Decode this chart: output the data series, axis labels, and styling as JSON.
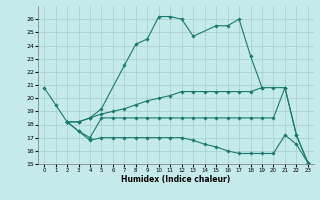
{
  "xlabel": "Humidex (Indice chaleur)",
  "bg_color": "#c5eaea",
  "line_color": "#1a7a6e",
  "grid_color": "#a8cccc",
  "xlim": [
    -0.5,
    23.5
  ],
  "ylim": [
    15,
    27
  ],
  "xticks": [
    0,
    1,
    2,
    3,
    4,
    5,
    6,
    7,
    8,
    9,
    10,
    11,
    12,
    13,
    14,
    15,
    16,
    17,
    18,
    19,
    20,
    21,
    22,
    23
  ],
  "yticks": [
    15,
    16,
    17,
    18,
    19,
    20,
    21,
    22,
    23,
    24,
    25,
    26
  ],
  "line1_x": [
    0,
    1,
    2,
    3,
    4,
    5,
    7,
    8,
    9,
    10,
    11,
    12,
    13,
    15,
    16,
    17,
    18,
    19
  ],
  "line1_y": [
    20.8,
    19.5,
    18.2,
    18.2,
    18.5,
    19.2,
    22.5,
    24.1,
    24.5,
    26.2,
    26.2,
    26.0,
    24.7,
    25.5,
    25.5,
    26.0,
    23.2,
    20.8
  ],
  "line2_x": [
    2,
    3,
    4,
    5,
    6,
    7,
    8,
    9,
    10,
    11,
    12,
    13,
    14,
    15,
    16,
    17,
    18,
    19,
    20,
    21,
    22,
    23
  ],
  "line2_y": [
    18.2,
    18.2,
    18.5,
    18.8,
    19.0,
    19.2,
    19.5,
    19.8,
    20.0,
    20.2,
    20.5,
    20.5,
    20.5,
    20.5,
    20.5,
    20.5,
    20.5,
    20.8,
    20.8,
    20.8,
    17.2,
    15.1
  ],
  "line3_x": [
    2,
    3,
    4,
    5,
    6,
    7,
    8,
    9,
    10,
    11,
    12,
    13,
    14,
    15,
    16,
    17,
    18,
    19,
    20,
    21,
    22,
    23
  ],
  "line3_y": [
    18.2,
    17.5,
    17.0,
    18.5,
    18.5,
    18.5,
    18.5,
    18.5,
    18.5,
    18.5,
    18.5,
    18.5,
    18.5,
    18.5,
    18.5,
    18.5,
    18.5,
    18.5,
    18.5,
    20.8,
    17.2,
    15.1
  ],
  "line4_x": [
    2,
    3,
    4,
    5,
    6,
    7,
    8,
    9,
    10,
    11,
    12,
    13,
    14,
    15,
    16,
    17,
    18,
    19,
    20,
    21,
    22,
    23
  ],
  "line4_y": [
    18.2,
    17.5,
    16.8,
    17.0,
    17.0,
    17.0,
    17.0,
    17.0,
    17.0,
    17.0,
    17.0,
    16.8,
    16.5,
    16.3,
    16.0,
    15.8,
    15.8,
    15.8,
    15.8,
    17.2,
    16.5,
    15.1
  ]
}
